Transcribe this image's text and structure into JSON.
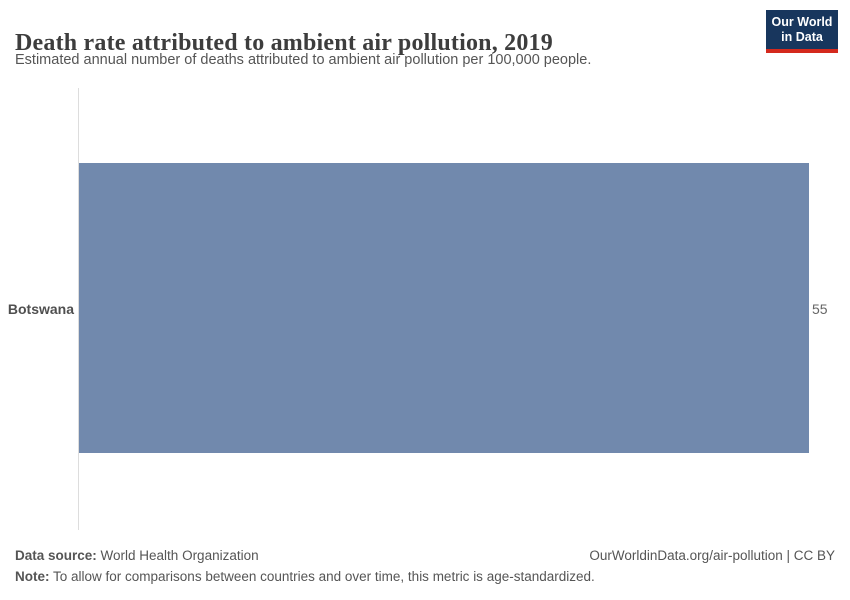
{
  "header": {
    "title": "Death rate attributed to ambient air pollution, 2019",
    "subtitle": "Estimated annual number of deaths attributed to ambient air pollution per 100,000 people.",
    "logo": {
      "line1": "Our World",
      "line2": "in Data"
    }
  },
  "chart_data": {
    "type": "bar",
    "orientation": "horizontal",
    "title": "Death rate attributed to ambient air pollution, 2019",
    "subtitle": "Estimated annual number of deaths attributed to ambient air pollution per 100,000 people.",
    "categories": [
      "Botswana"
    ],
    "values": [
      55
    ],
    "value_labels": [
      "55"
    ],
    "xlabel": "",
    "ylabel": "",
    "xlim": [
      0,
      55
    ],
    "grid": false,
    "legend": "none"
  },
  "footer": {
    "data_source_label": "Data source:",
    "data_source_value": " World Health Organization",
    "citation": "OurWorldinData.org/air-pollution | CC BY",
    "note_label": "Note:",
    "note_value": " To allow for comparisons between countries and over time, this metric is age-standardized."
  },
  "colors": {
    "bar": "#7189ad",
    "axis": "#dddddd",
    "title_text": "#3d3d3d",
    "body_text": "#555555",
    "logo_background": "#18365d",
    "logo_accent_red": "#d4291d"
  }
}
